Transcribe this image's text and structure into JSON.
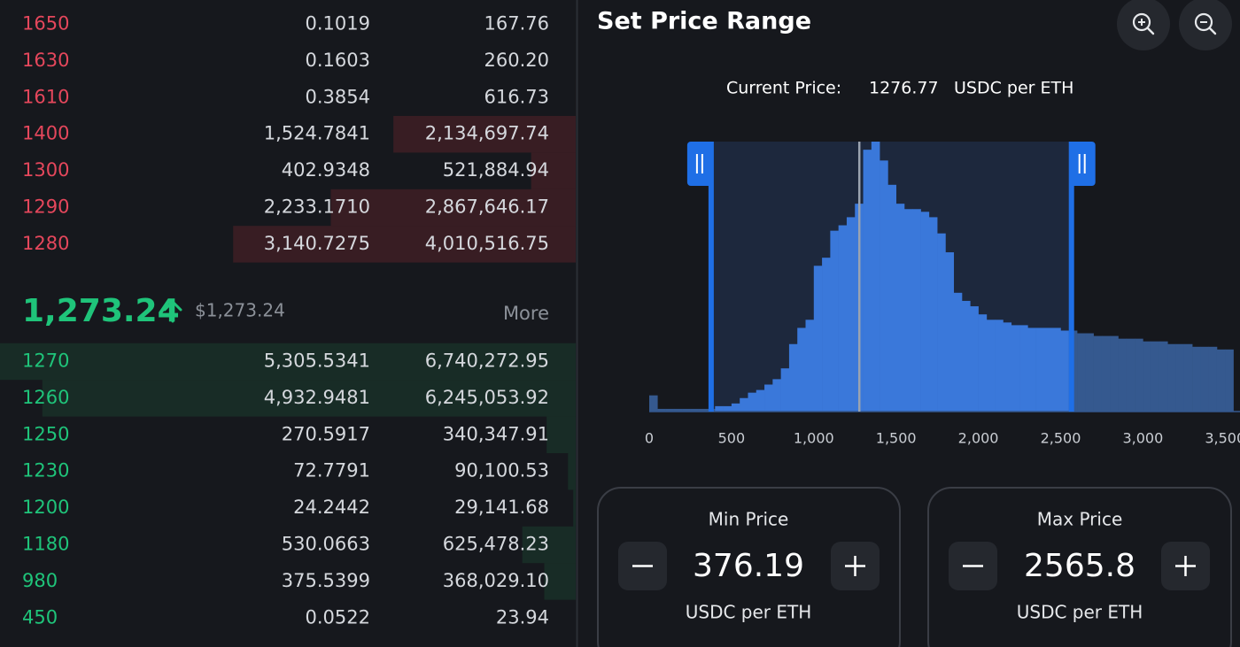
{
  "order_book": {
    "asks": [
      {
        "price": "1650",
        "amount": "0.1019",
        "total": "167.76"
      },
      {
        "price": "1630",
        "amount": "0.1603",
        "total": "260.20"
      },
      {
        "price": "1610",
        "amount": "0.3854",
        "total": "616.73"
      },
      {
        "price": "1400",
        "amount": "1,524.7841",
        "total": "2,134,697.74"
      },
      {
        "price": "1300",
        "amount": "402.9348",
        "total": "521,884.94"
      },
      {
        "price": "1290",
        "amount": "2,233.1710",
        "total": "2,867,646.17"
      },
      {
        "price": "1280",
        "amount": "3,140.7275",
        "total": "4,010,516.75"
      }
    ],
    "last_price": "1,273.24",
    "usd_price": "$1,273.24",
    "more": "More",
    "bids": [
      {
        "price": "1270",
        "amount": "5,305.5341",
        "total": "6,740,272.95"
      },
      {
        "price": "1260",
        "amount": "4,932.9481",
        "total": "6,245,053.92"
      },
      {
        "price": "1250",
        "amount": "270.5917",
        "total": "340,347.91"
      },
      {
        "price": "1230",
        "amount": "72.7791",
        "total": "90,100.53"
      },
      {
        "price": "1200",
        "amount": "24.2442",
        "total": "29,141.68"
      },
      {
        "price": "1180",
        "amount": "530.0663",
        "total": "625,478.23"
      },
      {
        "price": "980",
        "amount": "375.5399",
        "total": "368,029.10"
      },
      {
        "price": "450",
        "amount": "0.0522",
        "total": "23.94"
      }
    ]
  },
  "range_panel": {
    "title": "Set Price Range",
    "current_price_label": "Current Price:",
    "unit": "USDC per ETH",
    "min_label": "Min Price",
    "max_label": "Max Price"
  },
  "chart_data": {
    "type": "histogram",
    "bins": [
      0,
      50,
      100,
      150,
      200,
      250,
      300,
      350,
      400,
      450,
      500,
      550,
      600,
      650,
      700,
      750,
      800,
      850,
      900,
      950,
      1000,
      1050,
      1100,
      1150,
      1200,
      1250,
      1300,
      1350,
      1400,
      1450,
      1500,
      1550,
      1600,
      1650,
      1700,
      1750,
      1800,
      1850,
      1900,
      1950,
      2000,
      2050,
      2100,
      2150,
      2200,
      2250,
      2300,
      2350,
      2400,
      2450,
      2500,
      2550,
      2600,
      2650,
      2700,
      2750,
      2800,
      2850,
      2900,
      2950,
      3000,
      3050,
      3100,
      3150,
      3200,
      3250,
      3300,
      3350,
      3400,
      3450,
      3500,
      3550
    ],
    "values": [
      6,
      1,
      1,
      1,
      1,
      1,
      1,
      1,
      2,
      2,
      3,
      5,
      7,
      8,
      10,
      12,
      16,
      25,
      31,
      34,
      54,
      57,
      67,
      69,
      72,
      77,
      97,
      100,
      93,
      84,
      77,
      75,
      75,
      74,
      72,
      66,
      59,
      44,
      41,
      39,
      36,
      34,
      34,
      33,
      32,
      32,
      31,
      31,
      31,
      31,
      30,
      30,
      29,
      29,
      28,
      28,
      28,
      27,
      27,
      27,
      26,
      26,
      26,
      25,
      25,
      25,
      24,
      24,
      24,
      23,
      23
    ],
    "xlim": [
      0,
      3590
    ],
    "xticks": [
      0,
      500,
      {
        "value": 1000,
        "label": "1,000"
      },
      {
        "value": 1500,
        "label": "1,500"
      },
      {
        "value": 2000,
        "label": "2,000"
      },
      {
        "value": 2500,
        "label": "2,500"
      },
      {
        "value": 3000,
        "label": "3,000"
      },
      {
        "value": 3500,
        "label": "3,500"
      }
    ],
    "ylim": [
      0,
      100
    ],
    "color": "#3a78da",
    "out_of_range_color": "#35598f",
    "range": [
      376.19,
      2565.8
    ],
    "current_price": 1276.77
  }
}
